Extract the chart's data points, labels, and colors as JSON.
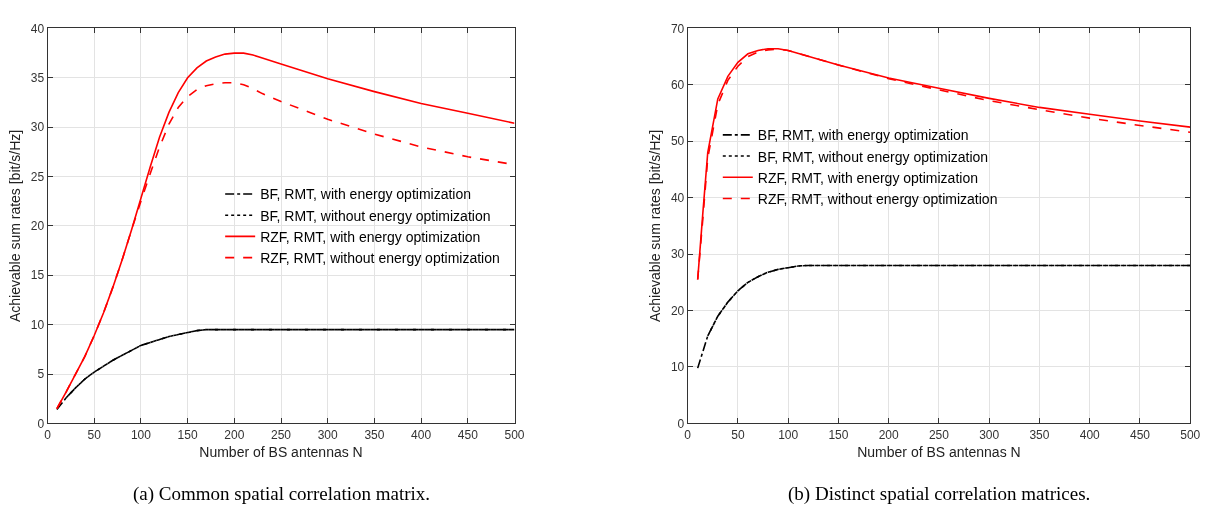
{
  "chart_data": [
    {
      "type": "line",
      "title": "(a) Common spatial correlation matrix.",
      "xlabel": "Number of BS antennas N",
      "ylabel": "Achievable sum rates [bit/s/Hz]",
      "xlim": [
        0,
        500
      ],
      "xticks": [
        0,
        50,
        100,
        150,
        200,
        250,
        300,
        350,
        400,
        450,
        500
      ],
      "ylim": [
        0,
        40
      ],
      "yticks": [
        0,
        5,
        10,
        15,
        20,
        25,
        30,
        35,
        40
      ],
      "grid": true,
      "legend": "right",
      "series": [
        {
          "name": "BF, RMT, with energy optimization",
          "color": "#000000",
          "line_style": "dashdot",
          "x": [
            10,
            20,
            30,
            40,
            50,
            60,
            70,
            80,
            90,
            100,
            110,
            120,
            130,
            140,
            150,
            160,
            170,
            180,
            200,
            250,
            300,
            350,
            400,
            450,
            500
          ],
          "values": [
            1.4,
            2.6,
            3.6,
            4.5,
            5.2,
            5.8,
            6.4,
            6.9,
            7.4,
            7.9,
            8.2,
            8.5,
            8.8,
            9.0,
            9.2,
            9.4,
            9.5,
            9.5,
            9.5,
            9.5,
            9.5,
            9.5,
            9.5,
            9.5,
            9.5
          ]
        },
        {
          "name": "BF, RMT, without energy optimization",
          "color": "#000000",
          "line_style": "dotted",
          "x": [
            20,
            30,
            40,
            50,
            60,
            70,
            80,
            90,
            100,
            110,
            120,
            130,
            140,
            150,
            160,
            170,
            180,
            200,
            250,
            300,
            350,
            400,
            450,
            500
          ],
          "values": [
            2.6,
            3.6,
            4.5,
            5.2,
            5.8,
            6.4,
            6.9,
            7.4,
            7.9,
            8.2,
            8.5,
            8.8,
            9.0,
            9.2,
            9.4,
            9.5,
            9.5,
            9.5,
            9.5,
            9.5,
            9.5,
            9.5,
            9.5,
            9.5
          ]
        },
        {
          "name": "RZF, RMT, with energy optimization",
          "color": "#ff0000",
          "line_style": "solid",
          "x": [
            10,
            20,
            30,
            40,
            50,
            60,
            70,
            80,
            90,
            100,
            110,
            120,
            130,
            140,
            150,
            160,
            170,
            180,
            190,
            200,
            210,
            220,
            230,
            250,
            300,
            350,
            400,
            450,
            500
          ],
          "values": [
            1.5,
            3.2,
            5.0,
            6.8,
            8.9,
            11.2,
            13.8,
            16.6,
            19.6,
            22.8,
            26.0,
            29.0,
            31.5,
            33.5,
            35.0,
            36.0,
            36.7,
            37.1,
            37.4,
            37.5,
            37.5,
            37.3,
            37.0,
            36.4,
            34.9,
            33.6,
            32.4,
            31.4,
            30.4
          ]
        },
        {
          "name": "RZF, RMT, without energy optimization",
          "color": "#ff0000",
          "line_style": "dashed",
          "x": [
            10,
            20,
            30,
            40,
            50,
            60,
            70,
            80,
            90,
            100,
            110,
            120,
            130,
            140,
            150,
            160,
            170,
            180,
            190,
            200,
            210,
            220,
            230,
            250,
            300,
            350,
            400,
            450,
            500
          ],
          "values": [
            1.5,
            3.2,
            5.0,
            6.8,
            8.9,
            11.2,
            13.8,
            16.6,
            19.6,
            22.5,
            25.3,
            28.0,
            30.3,
            32.0,
            33.1,
            33.8,
            34.2,
            34.4,
            34.5,
            34.5,
            34.3,
            33.9,
            33.4,
            32.6,
            30.8,
            29.3,
            28.0,
            27.0,
            26.2
          ]
        }
      ]
    },
    {
      "type": "line",
      "title": "(b) Distinct spatial correlation matrices.",
      "xlabel": "Number of BS antennas N",
      "ylabel": "Achievable sum rates [bit/s/Hz]",
      "xlim": [
        0,
        500
      ],
      "xticks": [
        0,
        50,
        100,
        150,
        200,
        250,
        300,
        350,
        400,
        450,
        500
      ],
      "ylim": [
        0,
        70
      ],
      "yticks": [
        0,
        10,
        20,
        30,
        40,
        50,
        60,
        70
      ],
      "grid": true,
      "legend": "top left",
      "series": [
        {
          "name": "BF, RMT, with energy optimization",
          "color": "#000000",
          "line_style": "dashdot",
          "x": [
            10,
            20,
            30,
            40,
            50,
            60,
            70,
            80,
            90,
            100,
            110,
            120,
            150,
            200,
            250,
            300,
            350,
            400,
            450,
            500
          ],
          "values": [
            9.8,
            15.5,
            19.0,
            21.5,
            23.5,
            25.0,
            26.0,
            26.8,
            27.3,
            27.6,
            27.9,
            28.0,
            28.0,
            28.0,
            28.0,
            28.0,
            28.0,
            28.0,
            28.0,
            28.0
          ]
        },
        {
          "name": "BF, RMT, without energy optimization",
          "color": "#000000",
          "line_style": "dotted",
          "x": [
            20,
            30,
            40,
            50,
            60,
            70,
            80,
            90,
            100,
            110,
            120,
            150,
            200,
            250,
            300,
            350,
            400,
            450,
            500
          ],
          "values": [
            15.5,
            19.0,
            21.5,
            23.5,
            25.0,
            26.0,
            26.8,
            27.3,
            27.6,
            27.9,
            28.0,
            28.0,
            28.0,
            28.0,
            28.0,
            28.0,
            28.0,
            28.0,
            28.0
          ]
        },
        {
          "name": "RZF, RMT, with energy optimization",
          "color": "#ff0000",
          "line_style": "solid",
          "x": [
            10,
            15,
            20,
            30,
            40,
            50,
            60,
            70,
            80,
            90,
            100,
            150,
            200,
            250,
            300,
            350,
            400,
            450,
            500
          ],
          "values": [
            25.5,
            37,
            48,
            57.5,
            61.5,
            64,
            65.5,
            66.1,
            66.4,
            66.4,
            66.1,
            63.5,
            61.2,
            59.4,
            57.6,
            56.0,
            54.8,
            53.6,
            52.5
          ]
        },
        {
          "name": "RZF, RMT, without energy optimization",
          "color": "#ff0000",
          "line_style": "dashed",
          "x": [
            10,
            15,
            20,
            30,
            40,
            50,
            60,
            70,
            80,
            90,
            100,
            150,
            200,
            250,
            300,
            350,
            400,
            450,
            500
          ],
          "values": [
            25.5,
            36,
            47,
            56.5,
            60.8,
            63.3,
            65.0,
            65.8,
            66.2,
            66.3,
            66.1,
            63.5,
            61.1,
            59.1,
            57.2,
            55.6,
            54.1,
            52.8,
            51.6
          ]
        }
      ]
    }
  ]
}
